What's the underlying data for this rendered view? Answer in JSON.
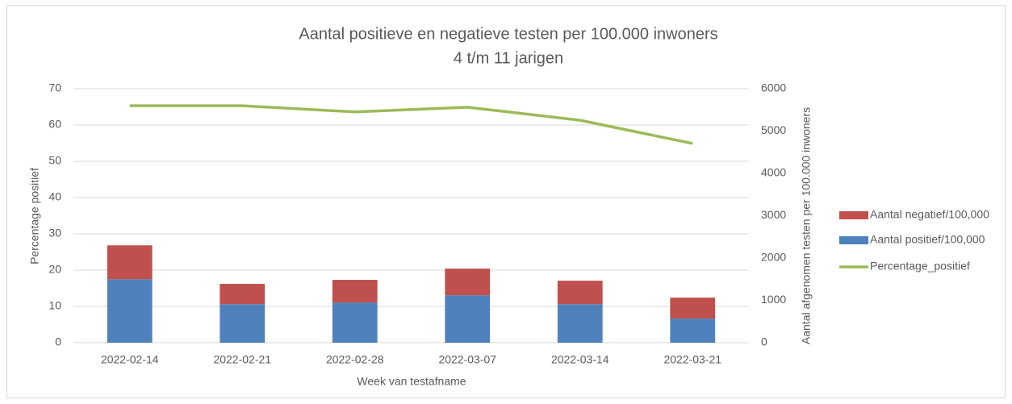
{
  "chart_data": {
    "type": "bar_line",
    "title": "Aantal positieve en negatieve testen per 100.000 inwoners",
    "subtitle": "4 t/m 11 jarigen",
    "x_label": "Week van testafname",
    "y_label": "Percentage positief",
    "y2_label": "Aantal afgenomen testen per 100.000 inwoners",
    "categories": [
      "2022-02-14",
      "2022-02-21",
      "2022-02-28",
      "2022-03-07",
      "2022-03-14",
      "2022-03-21"
    ],
    "stacked": true,
    "series": [
      {
        "name": "Aantal positief/100,000",
        "color": "#4f81bd",
        "type": "bar",
        "axis": "y2",
        "values": [
          1500,
          910,
          950,
          1120,
          910,
          570
        ]
      },
      {
        "name": "Aantal negatief/100,000",
        "color": "#c0504d",
        "type": "bar",
        "axis": "y2",
        "values": [
          800,
          480,
          535,
          630,
          555,
          495
        ]
      },
      {
        "name": "Percentage_positief",
        "color": "#9bbb59",
        "type": "line",
        "axis": "y",
        "values": [
          65.3,
          65.3,
          63.6,
          64.9,
          61.3,
          54.9
        ]
      }
    ],
    "legend_order": [
      1,
      0,
      2
    ],
    "ylim": [
      0,
      70
    ],
    "yticks": [
      0,
      10,
      20,
      30,
      40,
      50,
      60,
      70
    ],
    "y2lim": [
      0,
      6000
    ],
    "y2ticks": [
      0,
      1000,
      2000,
      3000,
      4000,
      5000,
      6000
    ],
    "grid": true,
    "legend": "right"
  }
}
